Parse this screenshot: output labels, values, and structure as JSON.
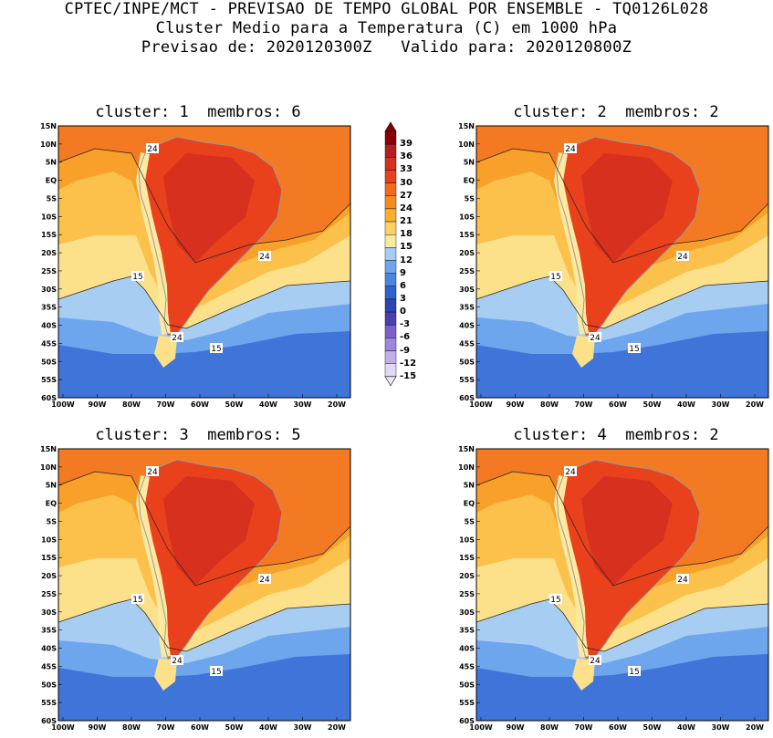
{
  "header": {
    "line1": "CPTEC/INPE/MCT - PREVISAO DE TEMPO GLOBAL POR ENSEMBLE - TQ0126L028",
    "line2": "Cluster Medio para a Temperatura (C) em 1000 hPa",
    "line3": "Previsao de: 2020120300Z   Valido para: 2020120800Z"
  },
  "panels": [
    {
      "title": "cluster: 1  membros: 6",
      "contour_labels": [
        "24",
        "24",
        "24",
        "15",
        "15"
      ]
    },
    {
      "title": "cluster: 2  membros: 2",
      "contour_labels": [
        "24",
        "24",
        "24",
        "15",
        "15"
      ]
    },
    {
      "title": "cluster: 3  membros: 5",
      "contour_labels": [
        "24",
        "24",
        "24",
        "15",
        "15"
      ]
    },
    {
      "title": "cluster: 4  membros: 2",
      "contour_labels": [
        "24",
        "24",
        "24",
        "15",
        "15"
      ]
    }
  ],
  "lat_ticks": [
    "15N",
    "10N",
    "5N",
    "EQ",
    "5S",
    "10S",
    "15S",
    "20S",
    "25S",
    "30S",
    "35S",
    "40S",
    "45S",
    "50S",
    "55S",
    "60S"
  ],
  "lon_ticks": [
    "100W",
    "90W",
    "80W",
    "70W",
    "60W",
    "50W",
    "40W",
    "30W",
    "20W"
  ],
  "colorbar": {
    "labels": [
      "39",
      "36",
      "33",
      "30",
      "27",
      "24",
      "21",
      "18",
      "15",
      "12",
      "9",
      "6",
      "3",
      "0",
      "-3",
      "-6",
      "-9",
      "-12",
      "-15"
    ],
    "colors": [
      "#8b0000",
      "#b41e1e",
      "#d7301f",
      "#e8411c",
      "#f26a1c",
      "#f68a1e",
      "#f9ae2c",
      "#fcd062",
      "#fde9a0",
      "#a3cdf5",
      "#6ea6ee",
      "#4a85e0",
      "#2e62cc",
      "#2b45b4",
      "#4a3eb0",
      "#7a62cc",
      "#9c88dc",
      "#beaeea",
      "#e0d8f6"
    ]
  },
  "map_colors": {
    "warm_ocean": "#f37a22",
    "orange": "#f9a02a",
    "light_orange": "#fbc14a",
    "yellow": "#fde08a",
    "pale_blue": "#a8cdf3",
    "blue": "#6ea6ee",
    "dark_blue": "#3f74d8",
    "land_hot": "#e8411c",
    "land_very_hot": "#d7301f",
    "andes": "#fde9a0",
    "coast_line": "#999999"
  }
}
